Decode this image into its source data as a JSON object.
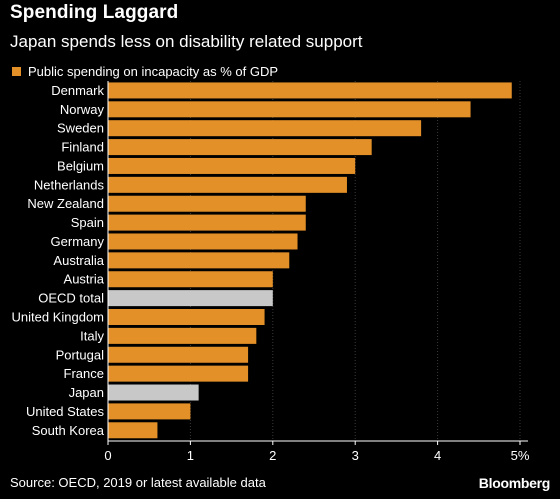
{
  "title": "Spending Laggard",
  "subtitle": "Japan spends less on disability related support",
  "source": "Source: OECD, 2019 or latest available data",
  "brand": "Bloomberg",
  "colors": {
    "bar": "#e39028",
    "highlight": "#c8c8c8",
    "background": "#000000"
  },
  "chart_data": {
    "type": "bar",
    "orientation": "horizontal",
    "series": [
      {
        "name": "Public spending on incapacity as % of GDP",
        "values": [
          4.9,
          4.4,
          3.8,
          3.2,
          3.0,
          2.9,
          2.4,
          2.4,
          2.3,
          2.2,
          2.0,
          2.0,
          1.9,
          1.8,
          1.7,
          1.7,
          1.1,
          1.0,
          0.6
        ]
      }
    ],
    "categories": [
      "Denmark",
      "Norway",
      "Sweden",
      "Finland",
      "Belgium",
      "Netherlands",
      "New Zealand",
      "Spain",
      "Germany",
      "Australia",
      "Austria",
      "OECD total",
      "United Kingdom",
      "Italy",
      "Portugal",
      "France",
      "Japan",
      "United States",
      "South Korea"
    ],
    "highlighted": [
      "OECD total",
      "Japan"
    ],
    "xticks": [
      "0",
      "1",
      "2",
      "3",
      "4",
      "5%"
    ],
    "xlim": [
      0,
      5
    ],
    "grid": true,
    "legend": "top-left"
  }
}
